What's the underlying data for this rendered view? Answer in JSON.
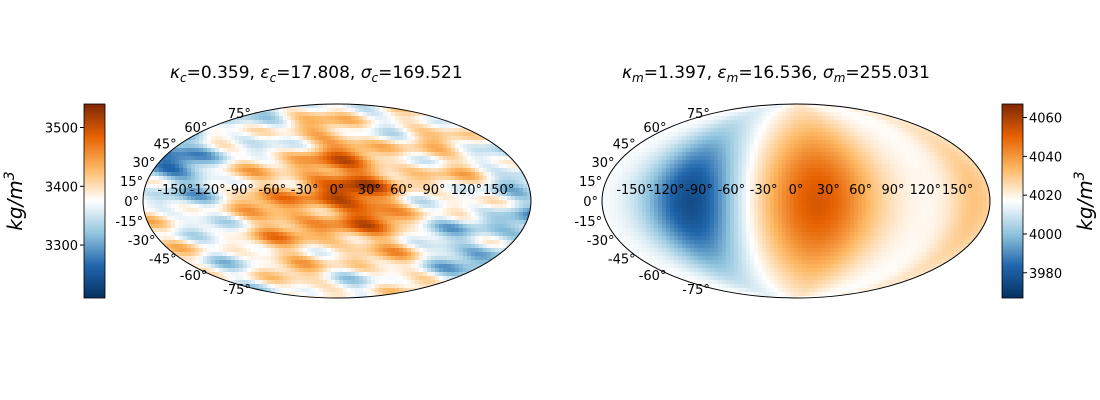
{
  "chart_data": [
    {
      "type": "heatmap",
      "projection": "mollweide",
      "title_parts": [
        {
          "sym": "κ",
          "sub": "c",
          "val": "=0.359, "
        },
        {
          "sym": "ε",
          "sub": "c",
          "val": "=17.808, "
        },
        {
          "sym": "σ",
          "sub": "c",
          "val": "=169.521"
        }
      ],
      "longitude_ticks": [
        "-150°",
        "-120°",
        "-90°",
        "-60°",
        "-30°",
        "0°",
        "30°",
        "60°",
        "90°",
        "120°",
        "150°"
      ],
      "latitude_ticks": [
        "75°",
        "60°",
        "45°",
        "30°",
        "15°",
        "0°",
        "-15°",
        "-30°",
        "-45°",
        "-60°",
        "-75°"
      ],
      "colorbar": {
        "position": "left",
        "ticks": [
          "3500",
          "3400",
          "3300"
        ],
        "tick_values": [
          3500,
          3400,
          3300
        ],
        "vmin": 3210,
        "vmax": 3540,
        "label_base": "kg/m",
        "label_exp": "3"
      },
      "field": "noisy",
      "colormap": [
        "#053061",
        "#2166ac",
        "#92c5de",
        "#ffffff",
        "#fdb863",
        "#e66101",
        "#7f2704"
      ]
    },
    {
      "type": "heatmap",
      "projection": "mollweide",
      "title_parts": [
        {
          "sym": "κ",
          "sub": "m",
          "val": "=1.397, "
        },
        {
          "sym": "ε",
          "sub": "m",
          "val": "=16.536, "
        },
        {
          "sym": "σ",
          "sub": "m",
          "val": "=255.031"
        }
      ],
      "longitude_ticks": [
        "-150°",
        "-120°",
        "-90°",
        "-60°",
        "-30°",
        "0°",
        "30°",
        "60°",
        "90°",
        "120°",
        "150°"
      ],
      "latitude_ticks": [
        "75°",
        "60°",
        "45°",
        "30°",
        "15°",
        "0°",
        "-15°",
        "-30°",
        "-45°",
        "-60°",
        "-75°"
      ],
      "colorbar": {
        "position": "right",
        "ticks": [
          "4060",
          "4040",
          "4020",
          "4000",
          "3980"
        ],
        "tick_values": [
          4060,
          4040,
          4020,
          4000,
          3980
        ],
        "vmin": 3967,
        "vmax": 4067,
        "label_base": "kg/m",
        "label_exp": "3"
      },
      "field": "smooth",
      "colormap": [
        "#053061",
        "#2166ac",
        "#92c5de",
        "#ffffff",
        "#fdb863",
        "#e66101",
        "#7f2704"
      ]
    }
  ]
}
